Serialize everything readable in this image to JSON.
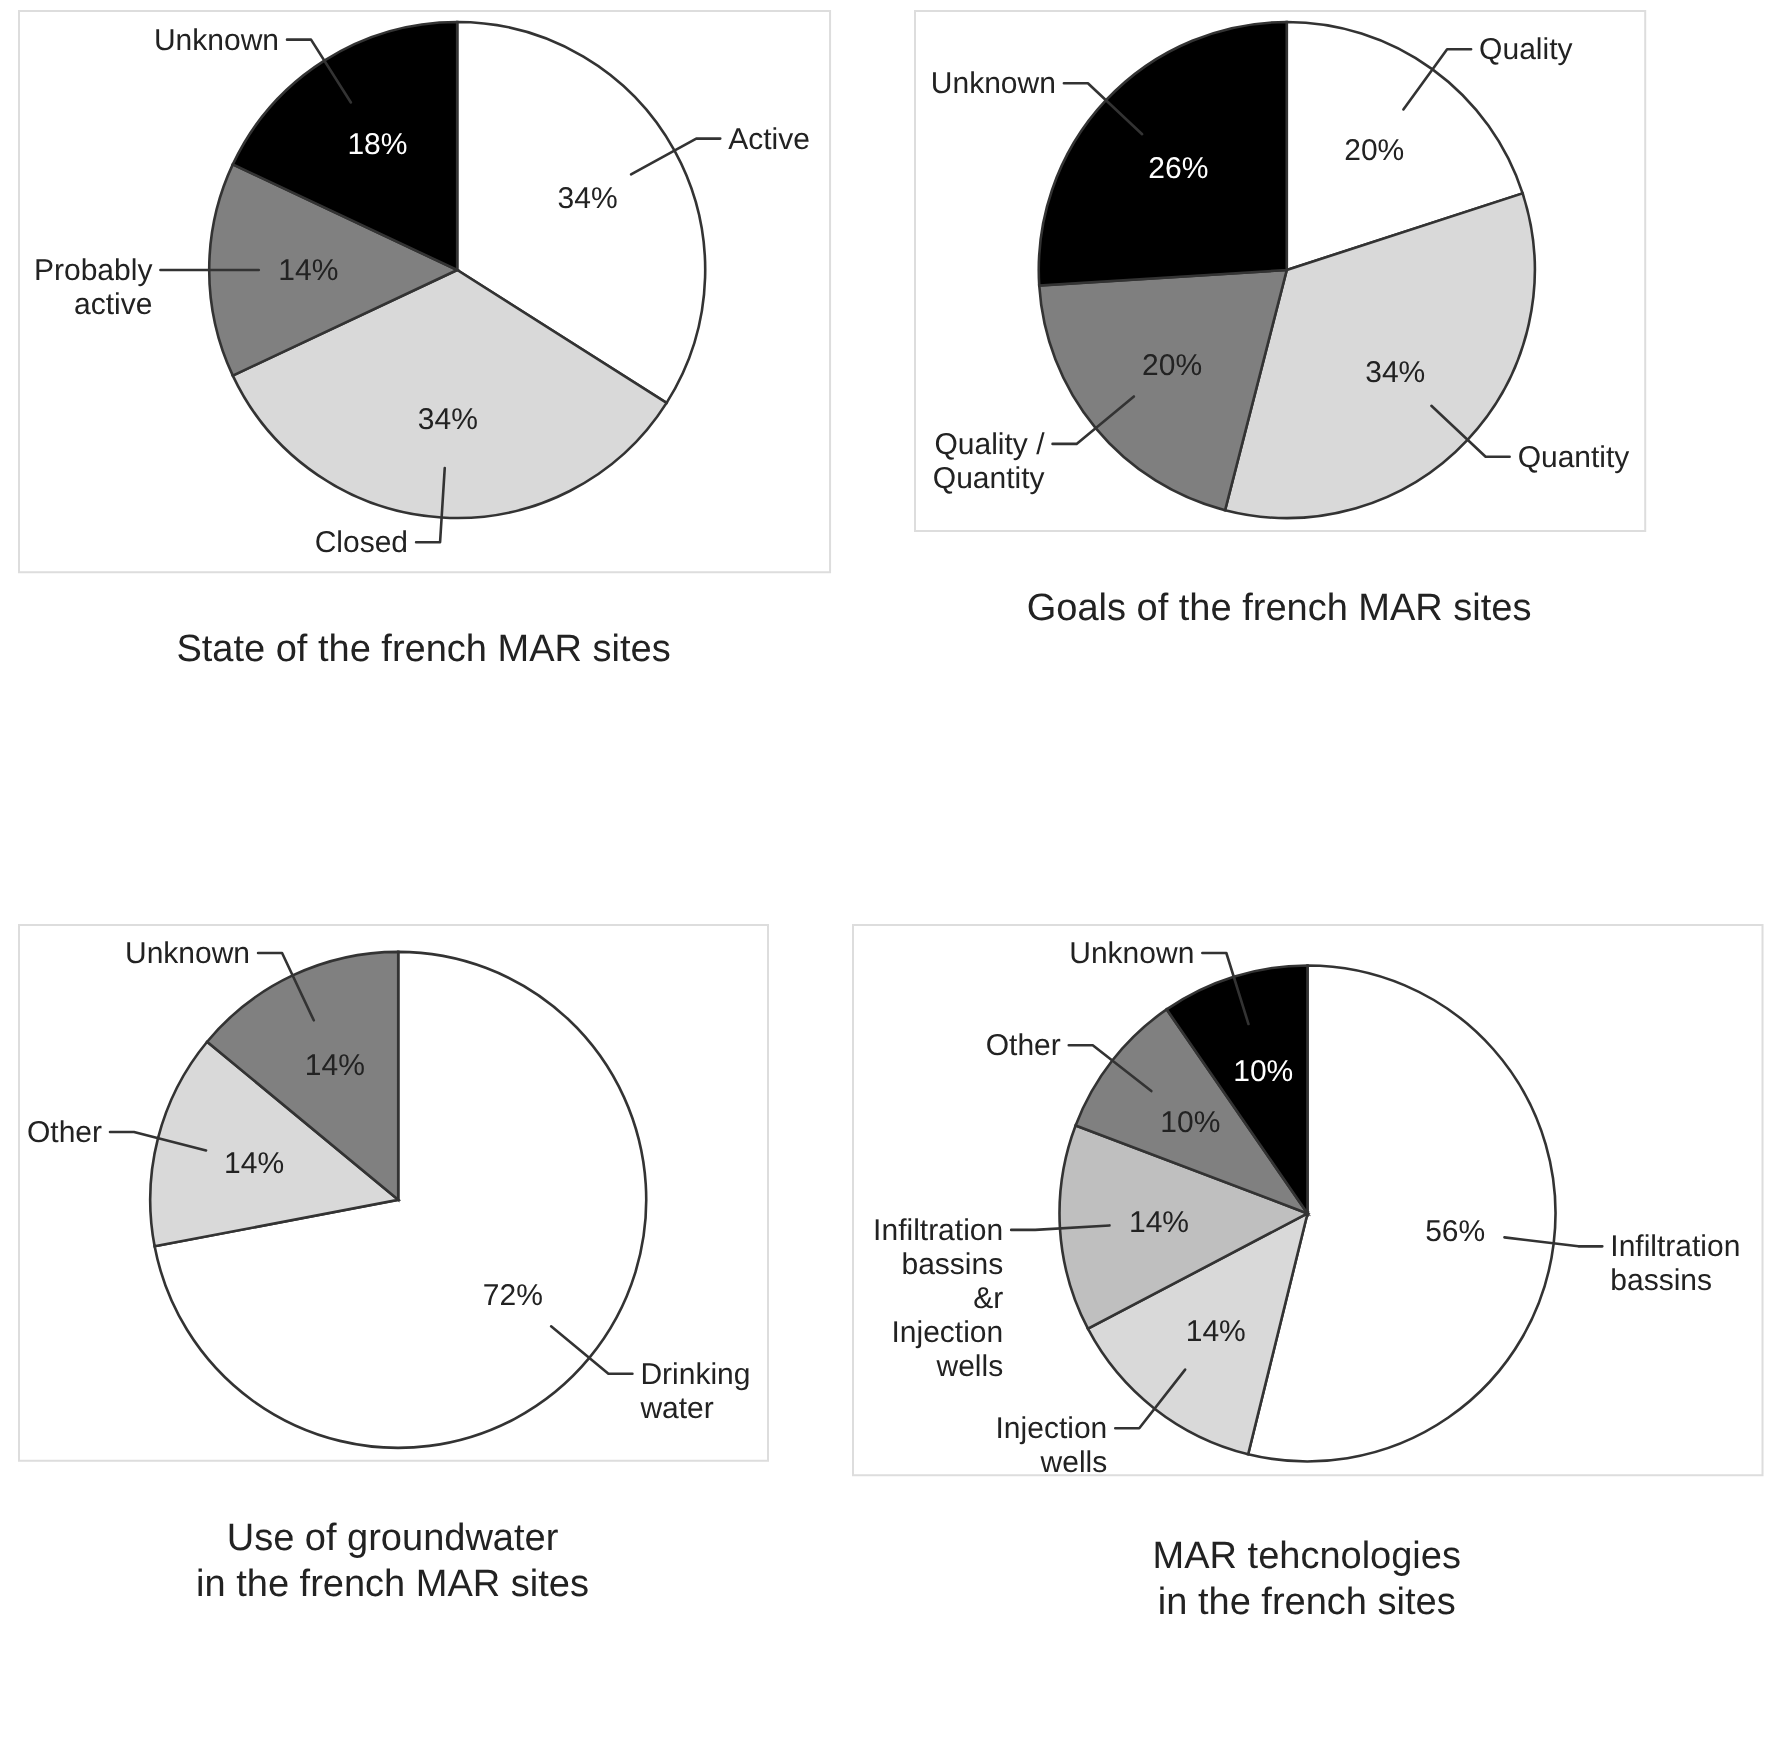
{
  "chart_data": [
    {
      "type": "pie",
      "title": "State of the french MAR sites",
      "categories": [
        "Active",
        "Closed",
        "Probably\nactive",
        "Unknown"
      ],
      "values": [
        34,
        34,
        14,
        18
      ],
      "value_labels": [
        "34%",
        "34%",
        "14%",
        "18%"
      ],
      "colors": [
        "#ffffff",
        "#d9d9d9",
        "#808080",
        "#000000"
      ]
    },
    {
      "type": "pie",
      "title": "Goals of the french MAR sites",
      "categories": [
        "Quality",
        "Quantity",
        "Quality /\nQuantity",
        "Unknown"
      ],
      "values": [
        20,
        34,
        20,
        26
      ],
      "value_labels": [
        "20%",
        "34%",
        "20%",
        "26%"
      ],
      "colors": [
        "#ffffff",
        "#d9d9d9",
        "#7f7f7f",
        "#000000"
      ]
    },
    {
      "type": "pie",
      "title": "Use of groundwater\nin the french MAR sites",
      "categories": [
        "Drinking\nwater",
        "Other",
        "Unknown"
      ],
      "values": [
        72,
        14,
        14
      ],
      "value_labels": [
        "72%",
        "14%",
        "14%"
      ],
      "colors": [
        "#ffffff",
        "#d9d9d9",
        "#808080"
      ]
    },
    {
      "type": "pie",
      "title": "MAR tehcnologies\nin the french sites",
      "categories": [
        "Infiltration\nbassins",
        "Injection\nwells",
        "Infiltration\nbassins\n&r\nInjection\nwells",
        "Other",
        "Unknown"
      ],
      "values": [
        56,
        14,
        14,
        10,
        10
      ],
      "value_labels": [
        "56%",
        "14%",
        "14%",
        "10%",
        "10%"
      ],
      "colors": [
        "#ffffff",
        "#d9d9d9",
        "#bfbfbf",
        "#808080",
        "#000000"
      ]
    }
  ]
}
